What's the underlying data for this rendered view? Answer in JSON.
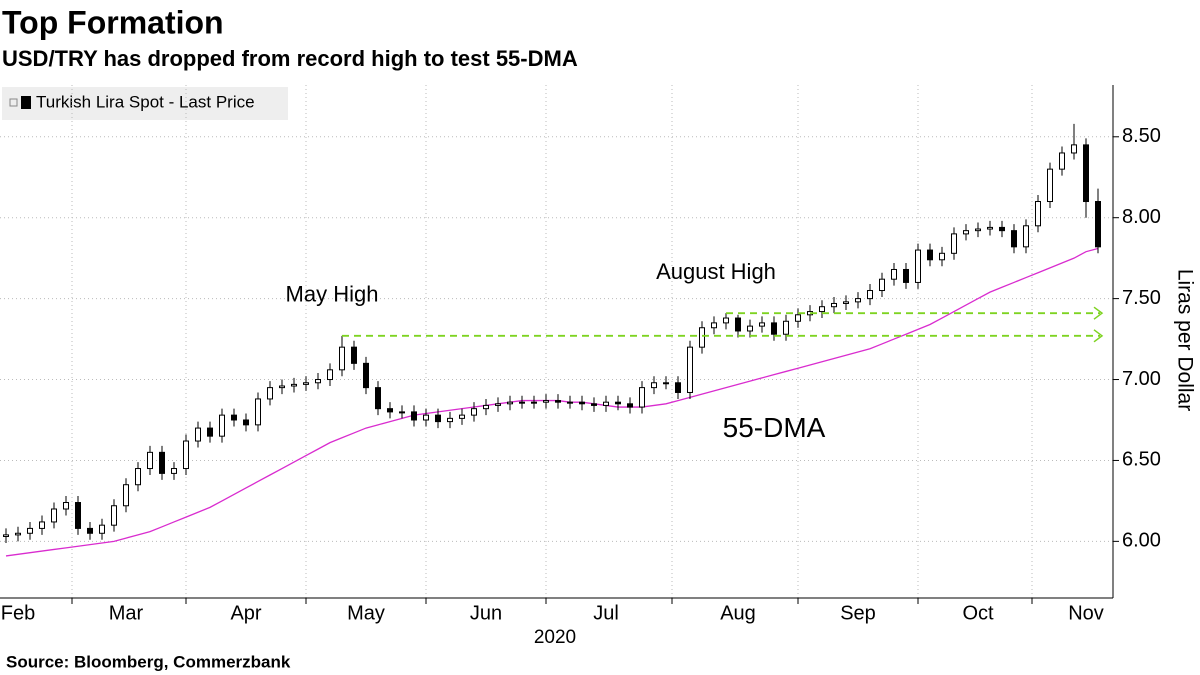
{
  "chart_data": {
    "type": "candlestick",
    "title": "Top Formation",
    "subtitle": "USD/TRY has dropped from record high to test 55-DMA",
    "name": "Turkish Lira Spot - Last Price",
    "y_label": "Liras per Dollar",
    "x_year_label": "2020",
    "source": "Source: Bloomberg, Commerzbank",
    "categories": [
      null,
      "Feb",
      null,
      null,
      null,
      null,
      null,
      null,
      null,
      null,
      "Mar",
      null,
      null,
      null,
      null,
      null,
      null,
      null,
      null,
      null,
      "Apr",
      null,
      null,
      null,
      null,
      null,
      null,
      null,
      null,
      null,
      "May",
      null,
      null,
      null,
      null,
      null,
      null,
      null,
      null,
      null,
      "Jun",
      null,
      null,
      null,
      null,
      null,
      null,
      null,
      null,
      null,
      "Jul",
      null,
      null,
      null,
      null,
      null,
      null,
      null,
      null,
      null,
      null,
      "Aug",
      null,
      null,
      null,
      null,
      null,
      null,
      null,
      null,
      null,
      "Sep",
      null,
      null,
      null,
      null,
      null,
      null,
      null,
      null,
      null,
      "Oct",
      null,
      null,
      null,
      null,
      null,
      null,
      null,
      null,
      "Nov",
      null
    ],
    "open": [
      6.03,
      6.04,
      6.05,
      6.08,
      6.12,
      6.2,
      6.24,
      6.08,
      6.05,
      6.1,
      6.22,
      6.35,
      6.45,
      6.55,
      6.42,
      6.45,
      6.62,
      6.7,
      6.65,
      6.78,
      6.75,
      6.72,
      6.88,
      6.95,
      6.96,
      6.97,
      6.98,
      7.0,
      7.06,
      7.2,
      7.1,
      6.95,
      6.82,
      6.8,
      6.8,
      6.75,
      6.78,
      6.74,
      6.76,
      6.78,
      6.82,
      6.84,
      6.85,
      6.86,
      6.86,
      6.86,
      6.87,
      6.86,
      6.86,
      6.85,
      6.84,
      6.86,
      6.85,
      6.83,
      6.95,
      6.98,
      6.98,
      6.92,
      7.2,
      7.32,
      7.35,
      7.38,
      7.3,
      7.33,
      7.35,
      7.28,
      7.36,
      7.4,
      7.42,
      7.45,
      7.47,
      7.48,
      7.5,
      7.55,
      7.62,
      7.68,
      7.6,
      7.8,
      7.74,
      7.78,
      7.9,
      7.92,
      7.93,
      7.94,
      7.92,
      7.82,
      7.95,
      8.1,
      8.3,
      8.4,
      8.45,
      8.1
    ],
    "high": [
      6.08,
      6.09,
      6.12,
      6.16,
      6.24,
      6.28,
      6.28,
      6.12,
      6.14,
      6.26,
      6.39,
      6.49,
      6.59,
      6.59,
      6.49,
      6.66,
      6.74,
      6.74,
      6.82,
      6.82,
      6.79,
      6.92,
      6.99,
      7.0,
      7.01,
      7.02,
      7.04,
      7.1,
      7.27,
      7.24,
      7.14,
      6.99,
      6.86,
      6.84,
      6.84,
      6.82,
      6.82,
      6.8,
      6.82,
      6.86,
      6.88,
      6.89,
      6.9,
      6.9,
      6.9,
      6.91,
      6.91,
      6.9,
      6.9,
      6.89,
      6.9,
      6.9,
      6.89,
      6.99,
      7.02,
      7.02,
      7.02,
      7.24,
      7.36,
      7.39,
      7.41,
      7.4,
      7.37,
      7.39,
      7.39,
      7.4,
      7.44,
      7.46,
      7.49,
      7.51,
      7.52,
      7.54,
      7.59,
      7.66,
      7.72,
      7.72,
      7.84,
      7.84,
      7.82,
      7.94,
      7.96,
      7.97,
      7.98,
      7.98,
      7.96,
      7.99,
      8.14,
      8.34,
      8.44,
      8.58,
      8.49,
      8.18
    ],
    "low": [
      5.99,
      6.0,
      6.01,
      6.04,
      6.08,
      6.16,
      6.04,
      6.01,
      6.01,
      6.06,
      6.18,
      6.31,
      6.41,
      6.38,
      6.38,
      6.41,
      6.58,
      6.61,
      6.61,
      6.71,
      6.68,
      6.68,
      6.84,
      6.91,
      6.92,
      6.93,
      6.94,
      6.96,
      7.02,
      7.06,
      6.91,
      6.78,
      6.76,
      6.76,
      6.71,
      6.71,
      6.7,
      6.7,
      6.72,
      6.74,
      6.78,
      6.8,
      6.81,
      6.82,
      6.82,
      6.82,
      6.82,
      6.82,
      6.81,
      6.8,
      6.8,
      6.81,
      6.79,
      6.79,
      6.91,
      6.94,
      6.88,
      6.88,
      7.16,
      7.28,
      7.31,
      7.26,
      7.26,
      7.29,
      7.24,
      7.24,
      7.32,
      7.36,
      7.38,
      7.41,
      7.43,
      7.44,
      7.46,
      7.51,
      7.58,
      7.56,
      7.56,
      7.7,
      7.7,
      7.74,
      7.86,
      7.88,
      7.89,
      7.88,
      7.78,
      7.78,
      7.91,
      8.06,
      8.26,
      8.36,
      8.0,
      7.78
    ],
    "close": [
      6.04,
      6.05,
      6.08,
      6.12,
      6.2,
      6.24,
      6.08,
      6.05,
      6.1,
      6.22,
      6.35,
      6.45,
      6.55,
      6.42,
      6.45,
      6.62,
      6.7,
      6.65,
      6.78,
      6.75,
      6.72,
      6.88,
      6.95,
      6.96,
      6.97,
      6.98,
      7.0,
      7.06,
      7.2,
      7.1,
      6.95,
      6.82,
      6.8,
      6.8,
      6.75,
      6.78,
      6.74,
      6.76,
      6.78,
      6.82,
      6.84,
      6.85,
      6.86,
      6.86,
      6.86,
      6.87,
      6.86,
      6.86,
      6.85,
      6.84,
      6.86,
      6.85,
      6.83,
      6.95,
      6.98,
      6.98,
      6.92,
      7.2,
      7.32,
      7.35,
      7.38,
      7.3,
      7.33,
      7.35,
      7.28,
      7.36,
      7.4,
      7.42,
      7.45,
      7.47,
      7.48,
      7.5,
      7.55,
      7.62,
      7.68,
      7.6,
      7.8,
      7.74,
      7.78,
      7.9,
      7.92,
      7.93,
      7.94,
      7.92,
      7.82,
      7.95,
      8.1,
      8.3,
      8.4,
      8.45,
      8.1,
      7.82
    ],
    "overlay": {
      "name": "55-DMA",
      "color": "#d92ccf",
      "values": [
        5.91,
        5.92,
        5.93,
        5.94,
        5.95,
        5.96,
        5.97,
        5.98,
        5.99,
        6.0,
        6.02,
        6.04,
        6.06,
        6.09,
        6.12,
        6.15,
        6.18,
        6.21,
        6.25,
        6.29,
        6.33,
        6.37,
        6.41,
        6.45,
        6.49,
        6.53,
        6.57,
        6.61,
        6.64,
        6.67,
        6.7,
        6.72,
        6.74,
        6.76,
        6.78,
        6.79,
        6.8,
        6.81,
        6.82,
        6.83,
        6.84,
        6.85,
        6.86,
        6.87,
        6.87,
        6.87,
        6.87,
        6.86,
        6.86,
        6.85,
        6.84,
        6.83,
        6.83,
        6.83,
        6.84,
        6.85,
        6.87,
        6.89,
        6.91,
        6.93,
        6.95,
        6.97,
        6.99,
        7.01,
        7.03,
        7.05,
        7.07,
        7.09,
        7.11,
        7.13,
        7.15,
        7.17,
        7.19,
        7.22,
        7.25,
        7.28,
        7.31,
        7.34,
        7.38,
        7.42,
        7.46,
        7.5,
        7.54,
        7.57,
        7.6,
        7.63,
        7.66,
        7.69,
        7.72,
        7.75,
        7.79,
        7.81
      ]
    },
    "annotations": [
      {
        "text": "May High",
        "level": 7.27,
        "color": "#7ed321"
      },
      {
        "text": "August High",
        "level": 7.41,
        "color": "#7ed321"
      }
    ],
    "ylim": [
      5.65,
      8.82
    ],
    "yticks": [
      {
        "value": 6,
        "label": "6.00"
      },
      {
        "value": 6.5,
        "label": "6.50"
      },
      {
        "value": 7,
        "label": "7.00"
      },
      {
        "value": 7.5,
        "label": "7.50"
      },
      {
        "value": 8,
        "label": "8.00"
      },
      {
        "value": 8.5,
        "label": "8.50"
      }
    ],
    "grid": true
  }
}
